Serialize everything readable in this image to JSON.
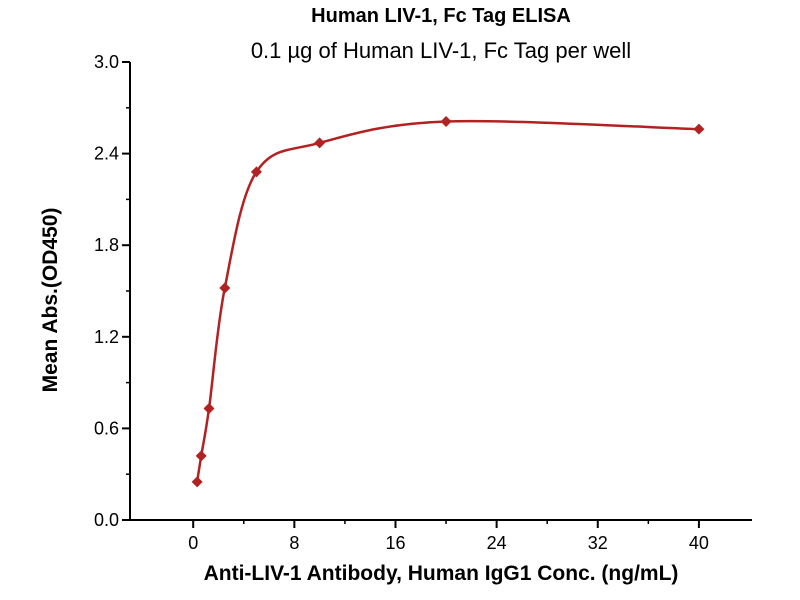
{
  "page": {
    "background": "#ffffff"
  },
  "chart_data": {
    "type": "scatter",
    "title": "Human LIV-1, Fc Tag ELISA",
    "subtitle": "0.1 µg of Human LIV-1, Fc Tag per well",
    "xlabel": "Anti-LIV-1 Antibody, Human IgG1 Conc. (ng/mL)",
    "ylabel": "Mean Abs.(OD450)",
    "points": [
      {
        "x": 0.31,
        "y": 0.25
      },
      {
        "x": 0.63,
        "y": 0.42
      },
      {
        "x": 1.25,
        "y": 0.73
      },
      {
        "x": 2.5,
        "y": 1.52
      },
      {
        "x": 5,
        "y": 2.28
      },
      {
        "x": 10,
        "y": 2.47
      },
      {
        "x": 20,
        "y": 2.61
      },
      {
        "x": 40,
        "y": 2.56
      }
    ],
    "x_ticks": [
      "0",
      "8",
      "16",
      "24",
      "32",
      "40"
    ],
    "x_minor_ticks": [
      4,
      12,
      20,
      28,
      36
    ],
    "y_ticks": [
      "0.0",
      "0.6",
      "1.2",
      "1.8",
      "2.4",
      "3.0"
    ],
    "y_minor_ticks": [
      0.3,
      0.9,
      1.5,
      2.1,
      2.7
    ],
    "xlim": [
      -5,
      44.2
    ],
    "ylim": [
      0,
      3.0
    ],
    "legend": "none",
    "grid": false,
    "marker": "diamond",
    "curve": "smooth",
    "marker_color": "#b22222",
    "line_color": "#b22222",
    "axis_color": "#000000"
  }
}
